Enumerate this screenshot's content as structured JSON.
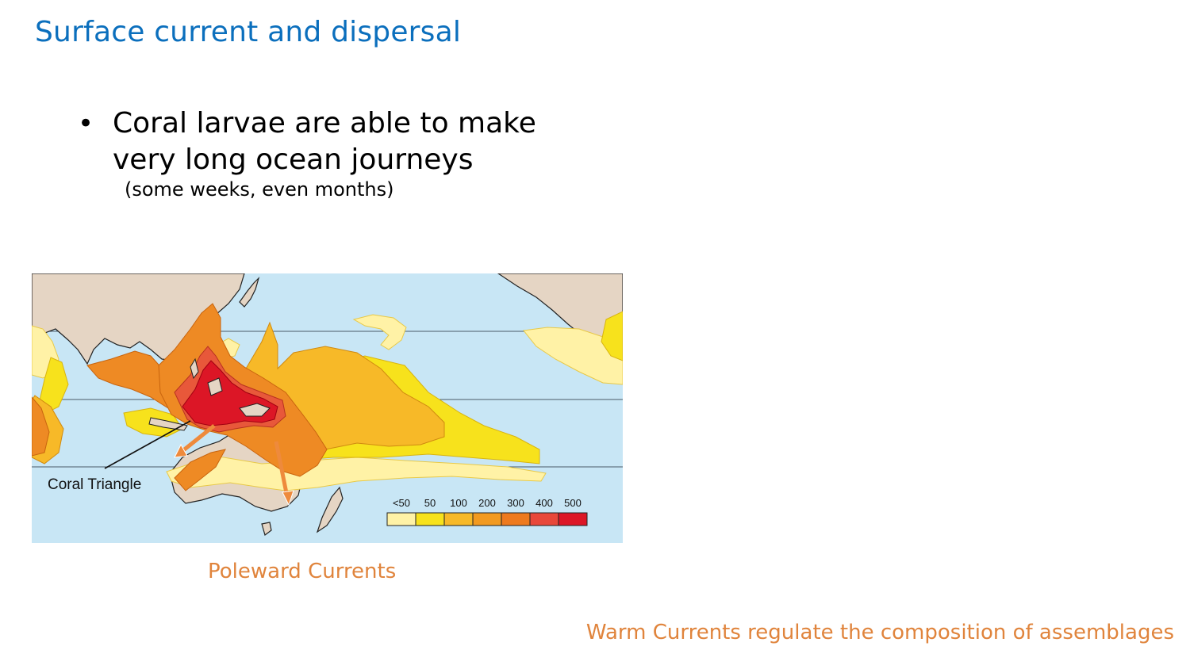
{
  "slide": {
    "title": "Surface current and dispersal",
    "bullet": "Coral larvae are able to make very long ocean journeys",
    "bullet_note": "(some weeks, even months)",
    "caption": "Poleward Currents",
    "footnote": "Warm Currents regulate the composition of assemblages"
  },
  "map": {
    "callout_label": "Coral Triangle",
    "legend": {
      "labels": [
        "<50",
        "50",
        "100",
        "200",
        "300",
        "400",
        "500"
      ],
      "colors": [
        "#fff2a6",
        "#f7e21c",
        "#f7b928",
        "#f29a20",
        "#ee7a1e",
        "#e8483a",
        "#dc1626"
      ]
    },
    "colors": {
      "ocean": "#c8e6f5",
      "land": "#e5d5c4",
      "arrow": "#ee8a3c"
    }
  },
  "icons": {
    "bullet": "•",
    "arrow": "current-arrow-icon"
  }
}
